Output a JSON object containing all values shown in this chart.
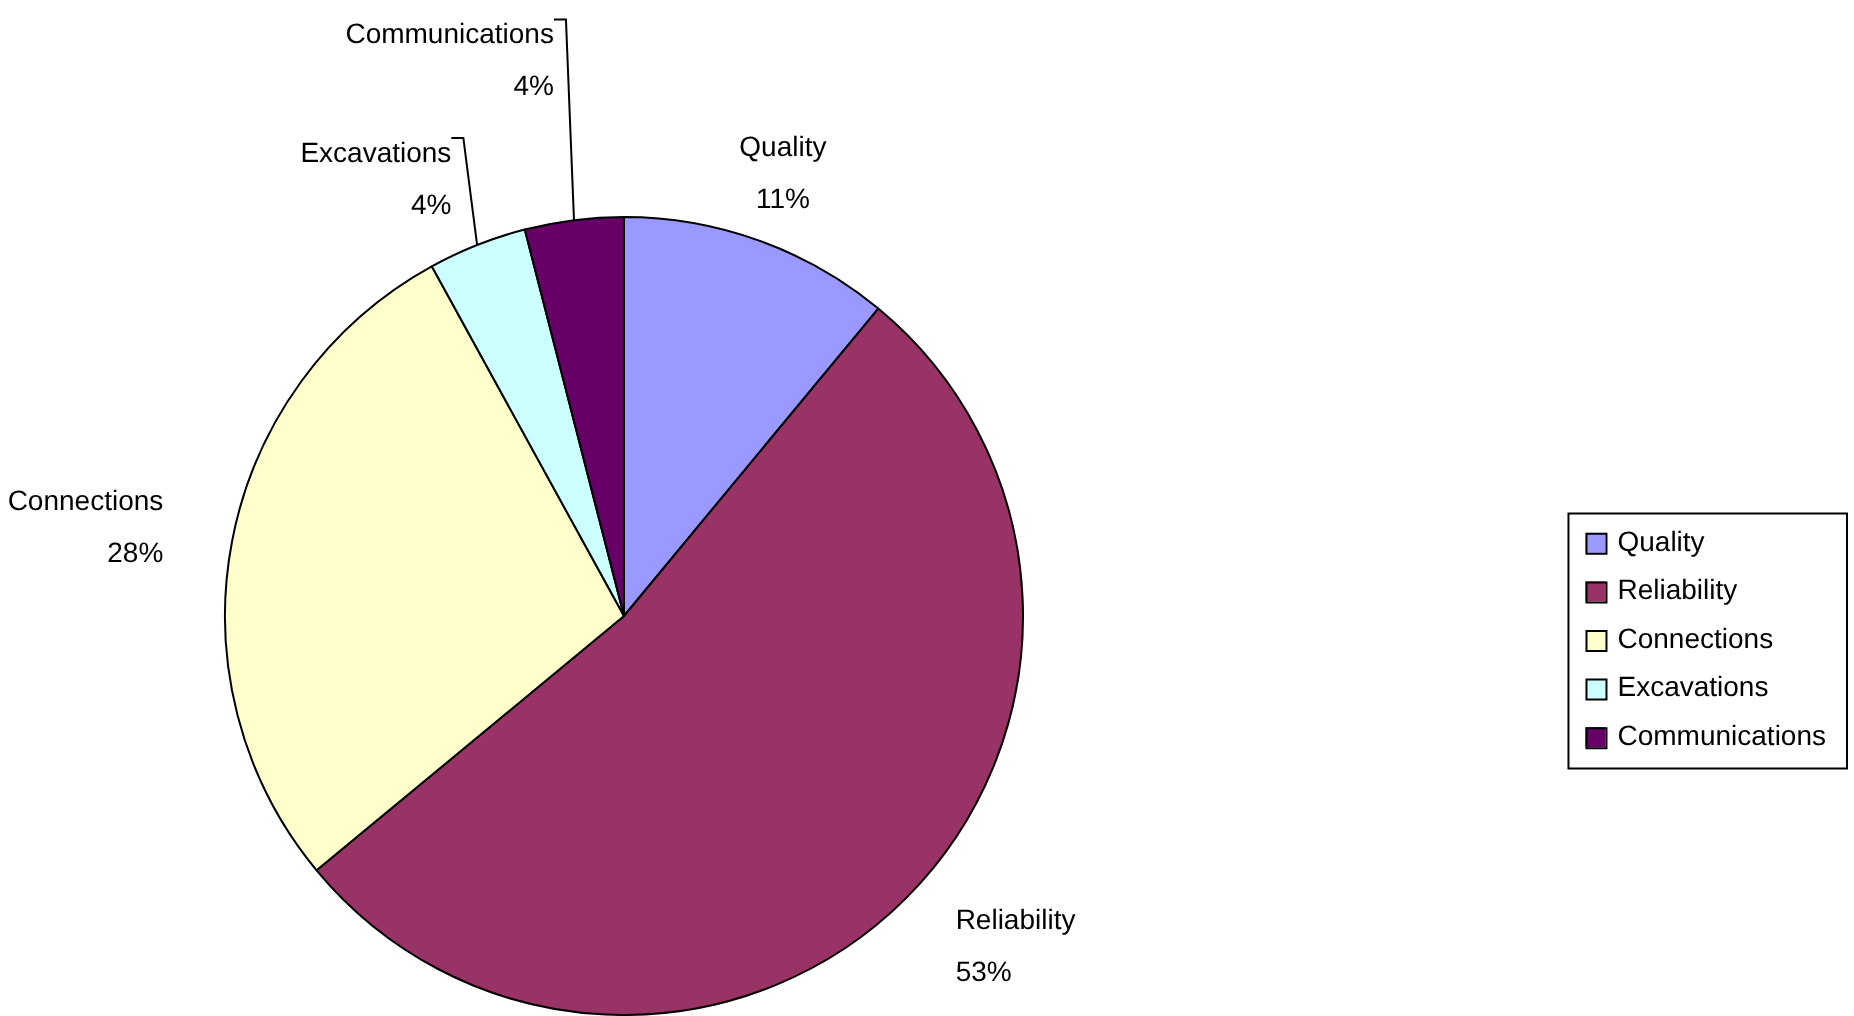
{
  "chart_data": {
    "type": "pie",
    "categories": [
      "Quality",
      "Reliability",
      "Connections",
      "Excavations",
      "Communications"
    ],
    "values": [
      11,
      53,
      28,
      4,
      4
    ],
    "value_labels": [
      "11%",
      "53%",
      "28%",
      "4%",
      "4%"
    ],
    "colors": [
      "#9999ff",
      "#993366",
      "#ffffcc",
      "#ccffff",
      "#660066"
    ],
    "legend": "right"
  }
}
